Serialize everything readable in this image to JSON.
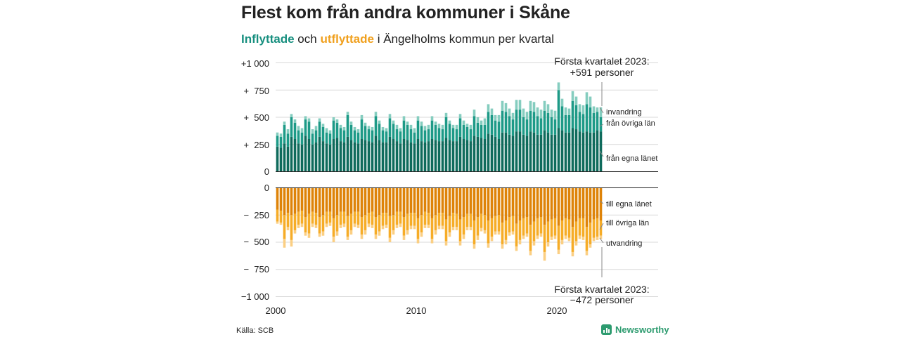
{
  "title": "Flest kom från andra kommuner i Skåne",
  "subtitle": {
    "in_word": "Inflyttade",
    "and_word": "och",
    "out_word": "utflyttade",
    "rest": "i Ängelholms kommun per kvartal"
  },
  "source": "Källa: SCB",
  "brand": "Newsworthy",
  "colors": {
    "in_own": "#0f6b5c",
    "in_other": "#1d9a87",
    "in_immigration": "#85cdbf",
    "out_own": "#de8308",
    "out_other": "#f6ac27",
    "out_emigration": "#fbcf83",
    "grid": "#d9d9d9"
  },
  "annotations": {
    "top_line1": "Första kvartalet 2023:",
    "top_line2": "+591 personer",
    "bottom_line1": "Första kvartalet 2023:",
    "bottom_line2": "−472 personer"
  },
  "chart_data": {
    "type": "bar",
    "stacked": true,
    "diverging": true,
    "x_start": "2000 Q1",
    "x_end": "2023 Q1",
    "x_ticks": [
      "2000",
      "2010",
      "2020"
    ],
    "y_ticks_in": [
      "+1 000",
      "+  750",
      "+  500",
      "+  250",
      "0"
    ],
    "y_ticks_out": [
      "0",
      "−  250",
      "−  500",
      "−  750",
      "−1 000"
    ],
    "ylim": [
      -1000,
      1000
    ],
    "series_labels": {
      "in_immigration": "invandring",
      "in_other": "från övriga län",
      "in_own": "från egna länet",
      "out_own": "till egna länet",
      "out_other": "till övriga län",
      "out_emigration": "utvandring"
    },
    "inflows": {
      "own_county": [
        230,
        220,
        260,
        230,
        320,
        300,
        260,
        250,
        330,
        300,
        250,
        270,
        320,
        280,
        260,
        250,
        300,
        310,
        280,
        270,
        320,
        290,
        270,
        260,
        300,
        290,
        280,
        270,
        330,
        290,
        270,
        270,
        320,
        300,
        280,
        260,
        300,
        290,
        270,
        260,
        300,
        280,
        270,
        280,
        300,
        290,
        280,
        280,
        310,
        290,
        280,
        280,
        320,
        300,
        290,
        280,
        330,
        320,
        310,
        300,
        350,
        340,
        320,
        300,
        360,
        360,
        340,
        330,
        370,
        370,
        340,
        330,
        370,
        360,
        340,
        340,
        380,
        360,
        340,
        340,
        400,
        380,
        360,
        360,
        400,
        390,
        370,
        360,
        370,
        360,
        360,
        380,
        370
      ],
      "other_counties": [
        100,
        100,
        170,
        120,
        180,
        150,
        120,
        110,
        150,
        160,
        100,
        110,
        140,
        130,
        100,
        100,
        170,
        140,
        120,
        110,
        200,
        140,
        110,
        100,
        180,
        130,
        110,
        110,
        180,
        150,
        110,
        100,
        170,
        140,
        110,
        110,
        170,
        140,
        120,
        100,
        170,
        140,
        110,
        110,
        170,
        140,
        120,
        110,
        190,
        150,
        120,
        110,
        170,
        130,
        120,
        110,
        180,
        130,
        120,
        130,
        200,
        180,
        150,
        160,
        200,
        190,
        170,
        150,
        200,
        200,
        160,
        150,
        190,
        190,
        170,
        150,
        180,
        180,
        160,
        140,
        350,
        220,
        160,
        160,
        250,
        220,
        180,
        170,
        250,
        230,
        180,
        170,
        130
      ],
      "immigration": [
        30,
        30,
        30,
        40,
        30,
        30,
        40,
        40,
        30,
        30,
        40,
        40,
        30,
        30,
        40,
        30,
        30,
        30,
        30,
        30,
        30,
        30,
        30,
        30,
        40,
        30,
        30,
        30,
        40,
        30,
        30,
        30,
        40,
        30,
        40,
        30,
        40,
        30,
        40,
        40,
        40,
        40,
        40,
        40,
        40,
        30,
        40,
        40,
        40,
        30,
        30,
        40,
        40,
        40,
        30,
        40,
        60,
        50,
        40,
        60,
        70,
        60,
        50,
        60,
        90,
        80,
        70,
        60,
        90,
        90,
        80,
        70,
        90,
        90,
        80,
        80,
        90,
        80,
        70,
        80,
        70,
        70,
        70,
        60,
        90,
        80,
        70,
        80,
        110,
        100,
        60,
        40,
        91
      ]
    },
    "outflows": {
      "own_county": [
        200,
        210,
        250,
        230,
        250,
        240,
        220,
        210,
        270,
        240,
        220,
        230,
        270,
        250,
        220,
        220,
        280,
        250,
        220,
        220,
        260,
        240,
        220,
        220,
        270,
        250,
        230,
        220,
        270,
        250,
        230,
        230,
        260,
        250,
        220,
        220,
        270,
        240,
        230,
        230,
        280,
        250,
        220,
        230,
        280,
        250,
        230,
        230,
        290,
        260,
        230,
        240,
        290,
        270,
        240,
        240,
        300,
        270,
        240,
        250,
        300,
        280,
        260,
        250,
        320,
        300,
        270,
        260,
        330,
        300,
        280,
        270,
        340,
        310,
        280,
        270,
        340,
        310,
        290,
        280,
        350,
        300,
        280,
        290,
        360,
        310,
        280,
        280,
        360,
        320,
        290,
        280,
        300
      ],
      "other_counties": [
        110,
        110,
        220,
        130,
        230,
        150,
        120,
        120,
        140,
        180,
        110,
        110,
        150,
        150,
        110,
        100,
        170,
        150,
        120,
        110,
        190,
        150,
        110,
        120,
        160,
        140,
        100,
        120,
        160,
        150,
        120,
        110,
        200,
        140,
        120,
        110,
        170,
        150,
        120,
        120,
        190,
        160,
        120,
        110,
        190,
        140,
        120,
        120,
        200,
        150,
        130,
        120,
        200,
        160,
        120,
        120,
        220,
        170,
        130,
        140,
        210,
        170,
        140,
        150,
        200,
        180,
        140,
        140,
        210,
        180,
        160,
        150,
        240,
        180,
        160,
        150,
        250,
        190,
        160,
        160,
        220,
        180,
        160,
        170,
        230,
        180,
        160,
        170,
        220,
        200,
        170,
        170,
        140
      ],
      "emigration": [
        20,
        20,
        80,
        30,
        60,
        30,
        30,
        30,
        30,
        40,
        30,
        30,
        30,
        40,
        30,
        30,
        50,
        40,
        30,
        30,
        30,
        40,
        30,
        30,
        40,
        40,
        30,
        30,
        40,
        40,
        30,
        30,
        40,
        40,
        30,
        30,
        40,
        40,
        30,
        30,
        40,
        40,
        30,
        30,
        40,
        40,
        30,
        30,
        40,
        40,
        30,
        30,
        40,
        40,
        30,
        30,
        40,
        40,
        30,
        30,
        40,
        40,
        30,
        30,
        40,
        40,
        30,
        30,
        40,
        40,
        30,
        30,
        40,
        40,
        30,
        30,
        80,
        40,
        30,
        30,
        40,
        40,
        30,
        30,
        40,
        40,
        30,
        30,
        40,
        30,
        30,
        30,
        32
      ]
    }
  }
}
